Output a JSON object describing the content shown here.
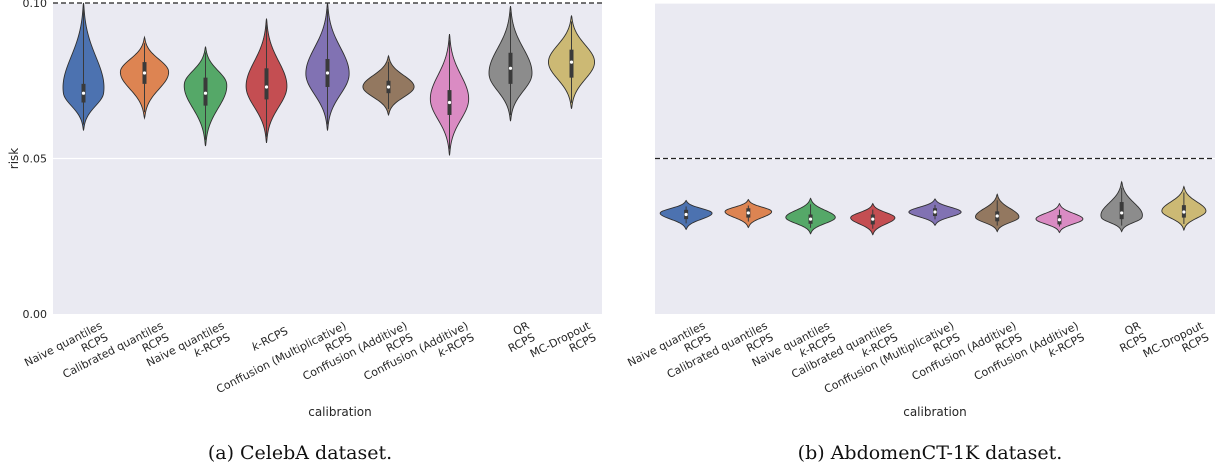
{
  "chart_data": [
    {
      "type": "violin",
      "caption": "(a) CelebA dataset.",
      "xlabel": "calibration",
      "ylabel": "risk",
      "ylim": [
        0.0,
        0.1
      ],
      "yticks": [
        {
          "value": 0.0,
          "label": "0.00"
        },
        {
          "value": 0.05,
          "label": "0.05"
        },
        {
          "value": 0.1,
          "label": "0.10"
        }
      ],
      "threshold": 0.1,
      "categories": [
        [
          "Naive quantiles",
          "RCPS"
        ],
        [
          "Calibrated quantiles",
          "RCPS"
        ],
        [
          "Naive quantiles",
          "k-RCPS"
        ],
        [
          "k-RCPS"
        ],
        [
          "Conffusion (Multiplicative)",
          "RCPS"
        ],
        [
          "Conffusion (Additive)",
          "RCPS"
        ],
        [
          "Conffusion (Additive)",
          "k-RCPS"
        ],
        [
          "QR",
          "RCPS"
        ],
        [
          "MC-Dropout",
          "RCPS"
        ]
      ],
      "series": [
        {
          "color": "#4c72b0",
          "min": 0.059,
          "max": 0.1,
          "q1": 0.068,
          "median": 0.071,
          "q3": 0.074,
          "mode": 0.071,
          "width": 0.85
        },
        {
          "color": "#dd8452",
          "min": 0.063,
          "max": 0.089,
          "q1": 0.074,
          "median": 0.0775,
          "q3": 0.081,
          "mode": 0.078,
          "width": 0.95
        },
        {
          "color": "#55a868",
          "min": 0.054,
          "max": 0.086,
          "q1": 0.067,
          "median": 0.071,
          "q3": 0.076,
          "mode": 0.074,
          "width": 0.85
        },
        {
          "color": "#c44e52",
          "min": 0.055,
          "max": 0.095,
          "q1": 0.069,
          "median": 0.073,
          "q3": 0.079,
          "mode": 0.073,
          "width": 0.8
        },
        {
          "color": "#8172b3",
          "min": 0.059,
          "max": 0.1,
          "q1": 0.073,
          "median": 0.0775,
          "q3": 0.082,
          "mode": 0.077,
          "width": 0.85
        },
        {
          "color": "#937860",
          "min": 0.064,
          "max": 0.083,
          "q1": 0.071,
          "median": 0.073,
          "q3": 0.075,
          "mode": 0.073,
          "width": 1.0
        },
        {
          "color": "#da8bc3",
          "min": 0.051,
          "max": 0.09,
          "q1": 0.064,
          "median": 0.068,
          "q3": 0.072,
          "mode": 0.069,
          "width": 0.75
        },
        {
          "color": "#8c8c8c",
          "min": 0.062,
          "max": 0.099,
          "q1": 0.074,
          "median": 0.079,
          "q3": 0.084,
          "mode": 0.077,
          "width": 0.85
        },
        {
          "color": "#ccb974",
          "min": 0.066,
          "max": 0.096,
          "q1": 0.076,
          "median": 0.081,
          "q3": 0.085,
          "mode": 0.081,
          "width": 0.9
        }
      ]
    },
    {
      "type": "violin",
      "caption": "(b) AbdomenCT-1K dataset.",
      "xlabel": "calibration",
      "ylabel": "",
      "ylim": [
        0.0,
        0.1
      ],
      "yticks": [],
      "threshold": 0.05,
      "categories": [
        [
          "Naive quantiles",
          "RCPS"
        ],
        [
          "Calibrated quantiles",
          "RCPS"
        ],
        [
          "Naive quantiles",
          "k-RCPS"
        ],
        [
          "Calibrated quantiles",
          "k-RCPS"
        ],
        [
          "Conffusion (Multiplicative)",
          "RCPS"
        ],
        [
          "Conffusion (Additive)",
          "RCPS"
        ],
        [
          "Conffusion (Additive)",
          "k-RCPS"
        ],
        [
          "QR",
          "RCPS"
        ],
        [
          "MC-Dropout",
          "RCPS"
        ]
      ],
      "series": [
        {
          "color": "#4c72b0",
          "min": 0.0272,
          "max": 0.0365,
          "q1": 0.0305,
          "median": 0.032,
          "q3": 0.0335,
          "mode": 0.0325,
          "width": 1.0
        },
        {
          "color": "#dd8452",
          "min": 0.0278,
          "max": 0.0368,
          "q1": 0.031,
          "median": 0.0325,
          "q3": 0.034,
          "mode": 0.033,
          "width": 0.9
        },
        {
          "color": "#55a868",
          "min": 0.0258,
          "max": 0.0372,
          "q1": 0.029,
          "median": 0.0305,
          "q3": 0.032,
          "mode": 0.031,
          "width": 0.95
        },
        {
          "color": "#c44e52",
          "min": 0.0255,
          "max": 0.0355,
          "q1": 0.0288,
          "median": 0.0305,
          "q3": 0.032,
          "mode": 0.031,
          "width": 0.85
        },
        {
          "color": "#8172b3",
          "min": 0.0285,
          "max": 0.037,
          "q1": 0.0315,
          "median": 0.0328,
          "q3": 0.034,
          "mode": 0.0328,
          "width": 1.0
        },
        {
          "color": "#937860",
          "min": 0.0265,
          "max": 0.0385,
          "q1": 0.0298,
          "median": 0.0315,
          "q3": 0.033,
          "mode": 0.031,
          "width": 0.85
        },
        {
          "color": "#da8bc3",
          "min": 0.0262,
          "max": 0.0355,
          "q1": 0.0288,
          "median": 0.0303,
          "q3": 0.0318,
          "mode": 0.0305,
          "width": 0.9
        },
        {
          "color": "#8c8c8c",
          "min": 0.0265,
          "max": 0.0425,
          "q1": 0.0305,
          "median": 0.0325,
          "q3": 0.036,
          "mode": 0.031,
          "width": 0.85
        },
        {
          "color": "#ccb974",
          "min": 0.027,
          "max": 0.041,
          "q1": 0.031,
          "median": 0.0328,
          "q3": 0.035,
          "mode": 0.033,
          "width": 0.85
        }
      ]
    }
  ]
}
